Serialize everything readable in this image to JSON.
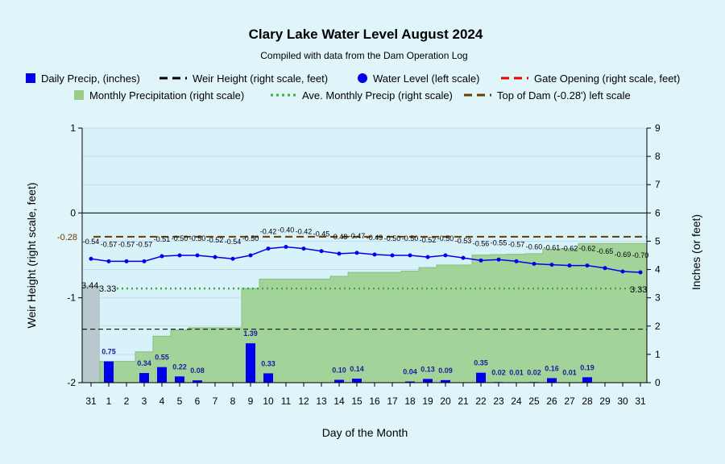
{
  "chart_data": {
    "type": "combo",
    "title": "Clary Lake Water Level August 2024",
    "subtitle": "Compiled with data from the Dam Operation Log",
    "xlabel": "Day of the Month",
    "ylabel_left": "Weir Height (right scale, feet)",
    "ylabel_right": "Inches (or feet)",
    "ylim_left": [
      -2,
      1
    ],
    "ylim_right": [
      0,
      9
    ],
    "left_ticks": [
      "1",
      "0",
      "-1",
      "-2"
    ],
    "right_ticks": [
      "0",
      "1",
      "2",
      "3",
      "4",
      "5",
      "6",
      "7",
      "8",
      "9"
    ],
    "x_tick_labels": [
      "31",
      "1",
      "2",
      "3",
      "4",
      "5",
      "6",
      "7",
      "8",
      "9",
      "10",
      "11",
      "12",
      "13",
      "14",
      "15",
      "16",
      "17",
      "18",
      "19",
      "20",
      "21",
      "22",
      "23",
      "24",
      "25",
      "26",
      "27",
      "28",
      "29",
      "30",
      "31"
    ],
    "legend": [
      {
        "label": "Daily Precip, (inches)",
        "style": "square",
        "color": "#0000ee"
      },
      {
        "label": "Weir Height (right scale, feet)",
        "style": "dash",
        "color": "#000000"
      },
      {
        "label": "Water Level (left scale)",
        "style": "dot",
        "color": "#0000ee"
      },
      {
        "label": "Gate Opening (right scale, feet)",
        "style": "dash",
        "color": "#ee0000"
      },
      {
        "label": "Monthly Precipitation (right scale)",
        "style": "square",
        "color": "#99cc88"
      },
      {
        "label": "Ave. Monthly Precip (right scale)",
        "style": "dots",
        "color": "#44aa44"
      },
      {
        "label": "Top of Dam (-0.28') left scale",
        "style": "dash",
        "color": "#6b3a00"
      }
    ],
    "water_level": {
      "values": [
        -0.54,
        -0.57,
        -0.57,
        -0.57,
        -0.51,
        -0.5,
        -0.5,
        -0.52,
        -0.54,
        -0.5,
        -0.42,
        -0.4,
        -0.42,
        -0.45,
        -0.48,
        -0.47,
        -0.49,
        -0.5,
        -0.5,
        -0.52,
        -0.5,
        -0.53,
        -0.56,
        -0.55,
        -0.57,
        -0.6,
        -0.61,
        -0.62,
        -0.62,
        -0.65,
        -0.69,
        -0.7
      ],
      "labels": [
        "-0.54",
        "-0.57",
        "-0.57",
        "-0.57",
        "-0.51",
        "-0.50",
        "-0.50",
        "-0.52",
        "-0.54",
        "-0.50",
        "-0.42",
        "-0.40",
        "-0.42",
        "-0.45",
        "-0.48",
        "-0.47",
        "-0.49",
        "-0.50",
        "-0.50",
        "-0.52",
        "-0.50",
        "-0.53",
        "-0.56",
        "-0.55",
        "-0.57",
        "-0.60",
        "-0.61",
        "-0.62",
        "-0.62",
        "-0.65",
        "-0.69",
        "-0.70"
      ]
    },
    "daily_precip": {
      "values": [
        0,
        0.75,
        0,
        0.34,
        0.55,
        0.22,
        0.08,
        0,
        0,
        1.39,
        0.33,
        0,
        0,
        0,
        0.1,
        0.14,
        0,
        0,
        0.04,
        0.13,
        0.09,
        0,
        0.35,
        0.02,
        0.01,
        0.02,
        0.16,
        0.01,
        0.19,
        0,
        0,
        0
      ],
      "labels": [
        "",
        "0.75",
        "",
        "0.34",
        "0.55",
        "0.22",
        "0.08",
        "",
        "",
        "1.39",
        "0.33",
        "",
        "",
        "",
        "0.10",
        "0.14",
        "",
        "",
        "0.04",
        "0.13",
        "0.09",
        "",
        "0.35",
        "0.02",
        "0.01",
        "0.02",
        "0.16",
        "0.01",
        "0.19",
        "",
        "",
        ""
      ]
    },
    "monthly_precip_cumulative": [
      3.44,
      0.75,
      0.75,
      1.09,
      1.64,
      1.86,
      1.94,
      1.94,
      1.94,
      3.33,
      3.66,
      3.66,
      3.66,
      3.66,
      3.76,
      3.9,
      3.9,
      3.9,
      3.94,
      4.07,
      4.16,
      4.16,
      4.51,
      4.53,
      4.54,
      4.56,
      4.72,
      4.73,
      4.92,
      4.92,
      4.92,
      4.92
    ],
    "avg_monthly_precip": {
      "value": 3.33,
      "start_label": "3.33",
      "end_label": "3.33"
    },
    "prev_month_end_label": "3.44",
    "weir_height_right": 1.89,
    "top_of_dam": {
      "value": -0.28,
      "label": "-0.28"
    }
  }
}
